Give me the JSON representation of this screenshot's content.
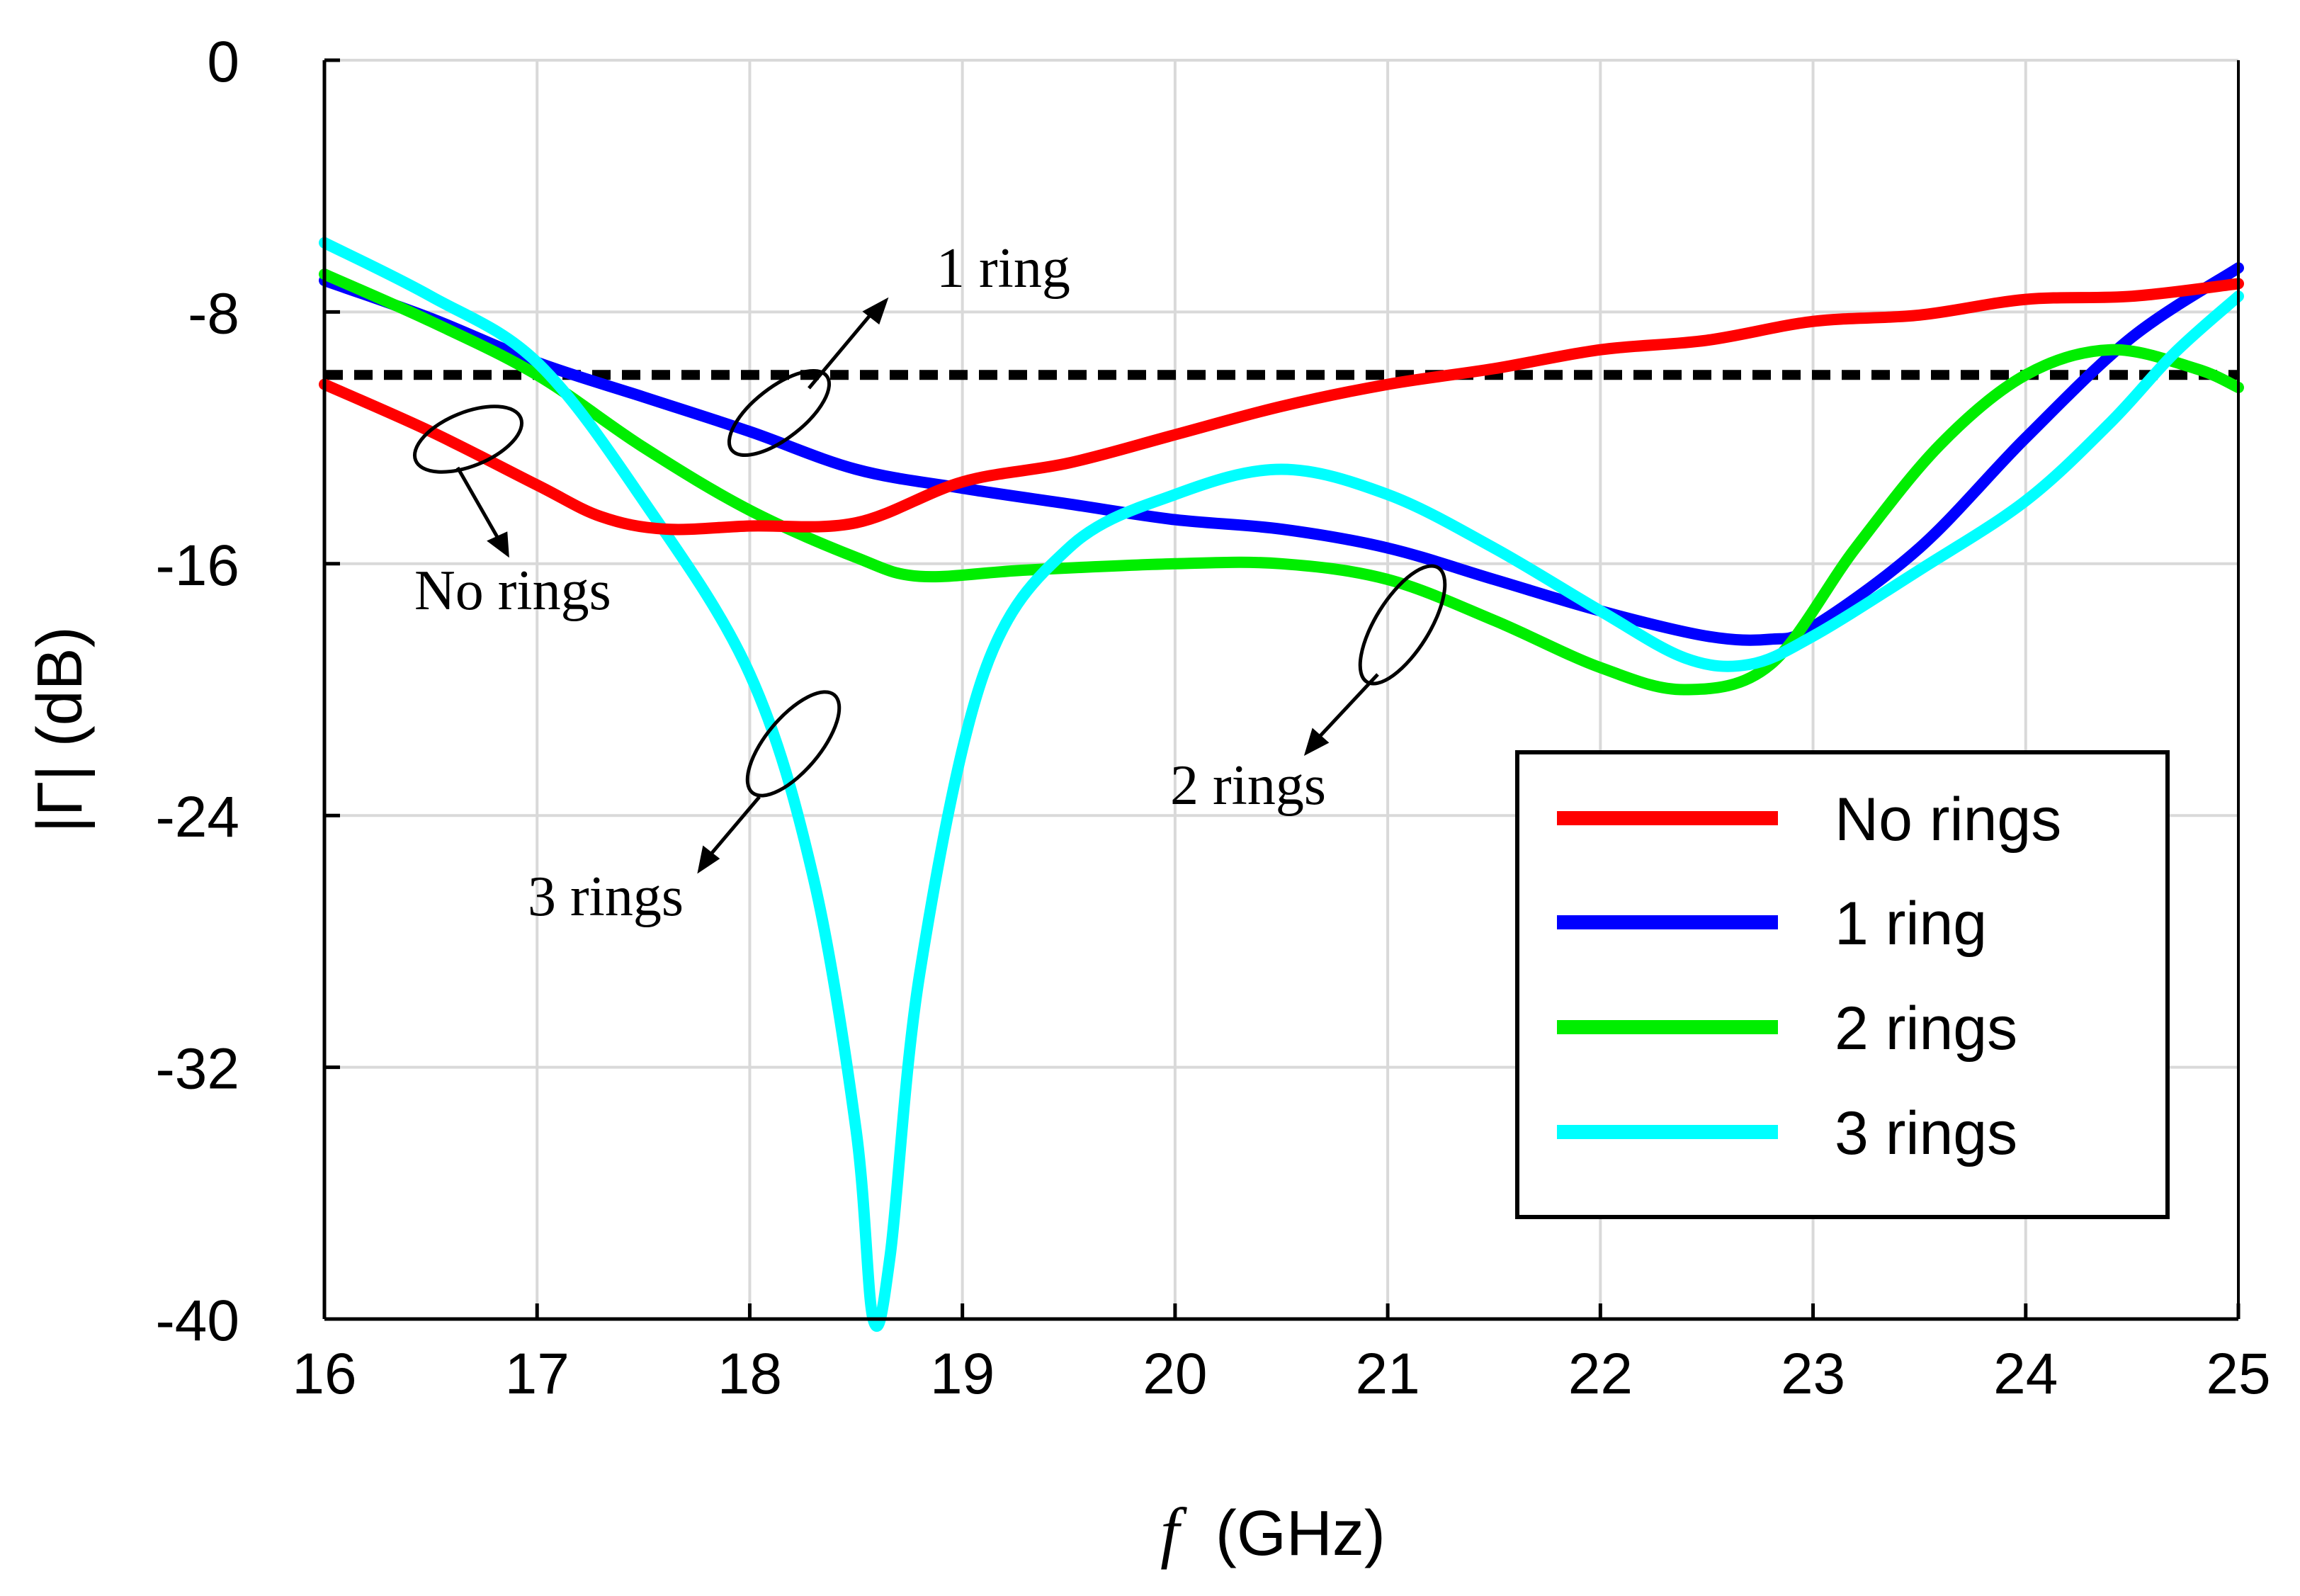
{
  "chart_data": {
    "type": "line",
    "title": "",
    "xlabel_symbol": "f",
    "xlabel_unit": "(GHz)",
    "ylabel": "|Γ| (dB)",
    "xlim": [
      16,
      25
    ],
    "ylim": [
      -40,
      0
    ],
    "xticks": [
      16,
      17,
      18,
      19,
      20,
      21,
      22,
      23,
      24,
      25
    ],
    "yticks": [
      0,
      -8,
      -16,
      -24,
      -32,
      -40
    ],
    "grid": true,
    "legend_position": "bottom-right",
    "reference_line": {
      "y": -10,
      "style": "dashed",
      "color": "#000000"
    },
    "series": [
      {
        "name": "No rings",
        "color": "#ff0000",
        "x": [
          16,
          16.5,
          17,
          17.3,
          17.6,
          18,
          18.5,
          19,
          19.5,
          20,
          20.5,
          21,
          21.5,
          22,
          22.5,
          23,
          23.5,
          24,
          24.5,
          25
        ],
        "y": [
          -10.3,
          -11.8,
          -13.5,
          -14.5,
          -14.9,
          -14.8,
          -14.7,
          -13.4,
          -12.8,
          -11.9,
          -11.0,
          -10.3,
          -9.8,
          -9.2,
          -8.9,
          -8.3,
          -8.1,
          -7.6,
          -7.5,
          -7.1
        ]
      },
      {
        "name": "1 ring",
        "color": "#0000ff",
        "x": [
          16,
          16.5,
          17,
          17.5,
          18,
          18.5,
          19,
          19.5,
          20,
          20.5,
          21,
          21.5,
          22,
          22.5,
          22.8,
          23,
          23.5,
          24,
          24.5,
          25
        ],
        "y": [
          -7.0,
          -8.2,
          -9.6,
          -10.7,
          -11.8,
          -13.0,
          -13.6,
          -14.1,
          -14.6,
          -14.9,
          -15.5,
          -16.5,
          -17.5,
          -18.3,
          -18.4,
          -18.0,
          -15.5,
          -12.0,
          -8.8,
          -6.6
        ]
      },
      {
        "name": "2 rings",
        "color": "#00ee00",
        "x": [
          16,
          16.5,
          17,
          17.5,
          18,
          18.5,
          18.8,
          19.3,
          20,
          20.5,
          21,
          21.5,
          22,
          22.4,
          22.8,
          23.2,
          23.6,
          24,
          24.4,
          24.8,
          25
        ],
        "y": [
          -6.8,
          -8.3,
          -10.0,
          -12.3,
          -14.3,
          -15.8,
          -16.4,
          -16.2,
          -16.0,
          -16.0,
          -16.5,
          -17.8,
          -19.3,
          -20.0,
          -19.2,
          -15.5,
          -12.2,
          -10.0,
          -9.2,
          -9.8,
          -10.4
        ]
      },
      {
        "name": "3 rings",
        "color": "#00ffff",
        "x": [
          16,
          16.5,
          17,
          17.5,
          18,
          18.3,
          18.5,
          18.58,
          18.66,
          18.8,
          19.1,
          19.5,
          20,
          20.5,
          21,
          21.5,
          22,
          22.4,
          22.7,
          23,
          23.5,
          24,
          24.4,
          24.7,
          25
        ],
        "y": [
          -5.8,
          -7.5,
          -9.6,
          -14.0,
          -19.5,
          -26.0,
          -34.0,
          -40.0,
          -38.0,
          -29.0,
          -19.5,
          -15.5,
          -13.8,
          -13.0,
          -13.8,
          -15.5,
          -17.5,
          -19.0,
          -19.2,
          -18.3,
          -16.2,
          -14.0,
          -11.5,
          -9.3,
          -7.5
        ]
      }
    ],
    "annotations": [
      {
        "text": "1 ring",
        "target": "1 ring"
      },
      {
        "text": "No rings",
        "target": "No rings"
      },
      {
        "text": "2 rings",
        "target": "2 rings"
      },
      {
        "text": "3 rings",
        "target": "3 rings"
      }
    ]
  }
}
